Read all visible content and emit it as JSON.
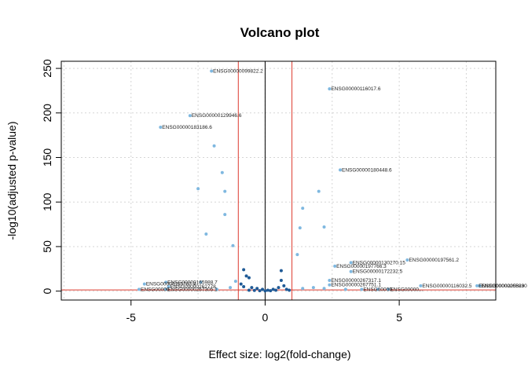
{
  "chart_data": {
    "type": "scatter",
    "title": "Volcano plot",
    "xlabel": "Effect size: log2(fold-change)",
    "ylabel": "-log10(adjusted p-value)",
    "xlim": [
      -7.6,
      8.6
    ],
    "ylim": [
      -10,
      258
    ],
    "xticks": [
      -5,
      0,
      5
    ],
    "yticks": [
      0,
      50,
      100,
      150,
      200,
      250
    ],
    "grid": true,
    "colors": {
      "significant": "#7fb8e0",
      "nonsignificant": "#1f5a96",
      "threshold_lines": "#dd3b2f",
      "zero_line": "#000000",
      "grid": "#d5d5d5"
    },
    "thresholds": {
      "fc_low": -1,
      "fc_high": 1,
      "pval_line": 1.3
    },
    "points": [
      {
        "x": 2.4,
        "y": 227,
        "label": "ENSG00000116017.6",
        "sig": true
      },
      {
        "x": -2.0,
        "y": 247,
        "label": "ENSG00000099822.2",
        "sig": true
      },
      {
        "x": -2.8,
        "y": 197,
        "label": "ENSG00000129946.6",
        "sig": true
      },
      {
        "x": -3.9,
        "y": 184,
        "label": "ENSG00000183186.6",
        "sig": true
      },
      {
        "x": -1.9,
        "y": 163,
        "sig": true
      },
      {
        "x": -1.6,
        "y": 133,
        "sig": true
      },
      {
        "x": 2.8,
        "y": 136,
        "label": "ENSG00000180448.6",
        "sig": true
      },
      {
        "x": -2.5,
        "y": 115,
        "sig": true
      },
      {
        "x": -1.5,
        "y": 112,
        "sig": true
      },
      {
        "x": 2.0,
        "y": 112,
        "sig": true
      },
      {
        "x": 1.4,
        "y": 93,
        "sig": true
      },
      {
        "x": -1.5,
        "y": 86,
        "sig": true
      },
      {
        "x": 1.3,
        "y": 71,
        "sig": true
      },
      {
        "x": 2.2,
        "y": 72,
        "sig": true
      },
      {
        "x": -2.2,
        "y": 64,
        "sig": true
      },
      {
        "x": -1.2,
        "y": 51,
        "sig": true
      },
      {
        "x": 1.2,
        "y": 41,
        "sig": true
      },
      {
        "x": 5.3,
        "y": 35,
        "label": "ENSG00000197561.2",
        "sig": true
      },
      {
        "x": 3.2,
        "y": 32,
        "label": "ENSG00000130270.15",
        "sig": true
      },
      {
        "x": 2.6,
        "y": 28,
        "label": "ENSG00000197766.3",
        "sig": true
      },
      {
        "x": 3.2,
        "y": 22,
        "label": "ENSG00000172232.5",
        "sig": true
      },
      {
        "x": -0.8,
        "y": 24,
        "sig": false
      },
      {
        "x": 0.6,
        "y": 23,
        "sig": false
      },
      {
        "x": -0.7,
        "y": 17,
        "sig": false
      },
      {
        "x": -0.6,
        "y": 15,
        "sig": false
      },
      {
        "x": 0.6,
        "y": 12,
        "sig": false
      },
      {
        "x": -1.1,
        "y": 11,
        "sig": true
      },
      {
        "x": 2.4,
        "y": 12,
        "label": "ENSG00000267317.1",
        "sig": true
      },
      {
        "x": -3.7,
        "y": 10,
        "label": "ENSG00000165988.7",
        "sig": true
      },
      {
        "x": -2.4,
        "y": 10,
        "sig": true
      },
      {
        "x": -4.5,
        "y": 8,
        "label": "ENSG00000163787.4",
        "sig": true
      },
      {
        "x": 2.4,
        "y": 7,
        "label": "ENSG00000267751.1",
        "sig": true
      },
      {
        "x": -3.6,
        "y": 5,
        "label": "ENSG00000262778",
        "sig": true
      },
      {
        "x": 5.8,
        "y": 6,
        "label": "ENSG00000116032.5",
        "sig": true
      },
      {
        "x": 7.9,
        "y": 6,
        "label": "ENSG00000205829",
        "sig": true
      },
      {
        "x": 8.0,
        "y": 6,
        "label": "ENSG00000205830",
        "sig": true
      },
      {
        "x": -4.7,
        "y": 2,
        "label": "ENSG00000...",
        "sig": true
      },
      {
        "x": -3.7,
        "y": 2,
        "label": "ENSG00000267305.1",
        "sig": true
      },
      {
        "x": 3.6,
        "y": 2,
        "label": "ENSG00000...",
        "sig": true
      },
      {
        "x": 4.6,
        "y": 2,
        "label": "ENSG00000...",
        "sig": true
      },
      {
        "x": 1.8,
        "y": 4,
        "sig": true
      },
      {
        "x": 2.2,
        "y": 3,
        "sig": true
      },
      {
        "x": 1.4,
        "y": 3,
        "sig": true
      },
      {
        "x": -1.3,
        "y": 4,
        "sig": true
      },
      {
        "x": -1.8,
        "y": 2,
        "sig": true
      },
      {
        "x": 3.0,
        "y": 2,
        "sig": true
      },
      {
        "x": 4.2,
        "y": 2,
        "sig": true
      },
      {
        "x": -0.9,
        "y": 8,
        "sig": false
      },
      {
        "x": -0.8,
        "y": 5,
        "sig": false
      },
      {
        "x": -0.5,
        "y": 4,
        "sig": false
      },
      {
        "x": -0.3,
        "y": 3,
        "sig": false
      },
      {
        "x": -0.1,
        "y": 2,
        "sig": false
      },
      {
        "x": 0.1,
        "y": 1,
        "sig": false
      },
      {
        "x": 0.3,
        "y": 2,
        "sig": false
      },
      {
        "x": 0.5,
        "y": 4,
        "sig": false
      },
      {
        "x": 0.7,
        "y": 6,
        "sig": false
      },
      {
        "x": 0.8,
        "y": 2,
        "sig": false
      },
      {
        "x": -0.6,
        "y": 1,
        "sig": false
      },
      {
        "x": -0.2,
        "y": 0.5,
        "sig": false
      },
      {
        "x": 0.2,
        "y": 0.5,
        "sig": false
      },
      {
        "x": 0.4,
        "y": 1,
        "sig": false
      },
      {
        "x": 0.9,
        "y": 1,
        "sig": false
      },
      {
        "x": -0.4,
        "y": 0.8,
        "sig": false
      },
      {
        "x": 0.0,
        "y": 0.3,
        "sig": false
      }
    ]
  }
}
